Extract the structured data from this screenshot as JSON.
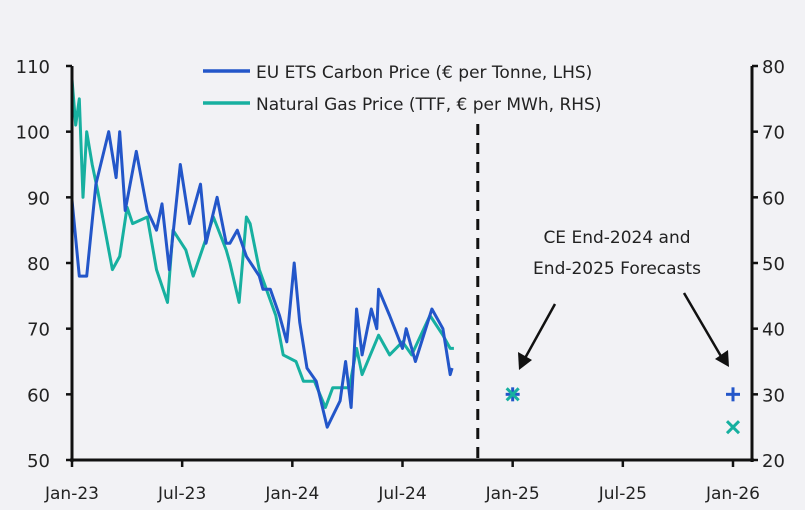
{
  "chart_data": {
    "type": "line",
    "title": "",
    "x_unit": "months since Jan-23",
    "xlim": [
      0,
      36
    ],
    "x_ticks": [
      {
        "x": 0,
        "label": "Jan-23"
      },
      {
        "x": 6,
        "label": "Jul-23"
      },
      {
        "x": 12,
        "label": "Jan-24"
      },
      {
        "x": 18,
        "label": "Jul-24"
      },
      {
        "x": 24,
        "label": "Jan-25"
      },
      {
        "x": 30,
        "label": "Jul-25"
      },
      {
        "x": 36,
        "label": "Jan-26"
      }
    ],
    "y_left": {
      "label": "",
      "lim": [
        50,
        110
      ],
      "ticks": [
        "50",
        "60",
        "70",
        "80",
        "90",
        "100",
        "110"
      ]
    },
    "y_right": {
      "label": "",
      "lim": [
        20,
        80
      ],
      "ticks": [
        "20",
        "30",
        "40",
        "50",
        "60",
        "70",
        "80"
      ]
    },
    "forecast_divider_x": 22.1,
    "legend": {
      "placement": "top-center"
    },
    "annotation": {
      "lines": [
        "CE End-2024 and",
        "End-2025 Forecasts"
      ]
    },
    "series": [
      {
        "name": "EU ETS Carbon Price (€ per Tonne, LHS)",
        "axis": "left",
        "color": "#2356c9",
        "x": [
          0,
          0.4,
          0.8,
          1.3,
          2.0,
          2.4,
          2.6,
          2.9,
          3.5,
          4.1,
          4.6,
          4.9,
          5.3,
          5.9,
          6.4,
          7.0,
          7.3,
          7.9,
          8.4,
          8.6,
          9.0,
          9.5,
          10.2,
          10.4,
          10.8,
          11.3,
          11.7,
          12.1,
          12.4,
          12.8,
          13.3,
          13.9,
          14.6,
          14.9,
          15.2,
          15.5,
          15.8,
          16.3,
          16.6,
          16.7,
          17.3,
          18.0,
          18.2,
          18.7,
          19.6,
          20.2,
          20.6,
          20.7
        ],
        "y": [
          89.6,
          78,
          78,
          92,
          100,
          93,
          100,
          88,
          97,
          88,
          85,
          89,
          79,
          95,
          86,
          92,
          83,
          90,
          83,
          83,
          85,
          81,
          78,
          76,
          76,
          72,
          68,
          80,
          71,
          64,
          62,
          55,
          59,
          65,
          58,
          73,
          66,
          73,
          70,
          76,
          72,
          67,
          70,
          65,
          73,
          70,
          63,
          64
        ]
      },
      {
        "name": "Natural Gas Price (TTF, € per MWh, RHS)",
        "axis": "right",
        "color": "#17b0a0",
        "x": [
          0,
          0.2,
          0.4,
          0.6,
          0.8,
          1.1,
          1.4,
          2.2,
          2.6,
          3.0,
          3.3,
          4.1,
          4.6,
          5.2,
          5.5,
          6.2,
          6.6,
          7.7,
          8.4,
          8.6,
          9.1,
          9.5,
          9.7,
          10.2,
          11.1,
          11.5,
          12.2,
          12.6,
          13.2,
          13.8,
          14.2,
          15.1,
          15.5,
          15.8,
          16.7,
          17.3,
          18.0,
          18.5,
          19.5,
          20.2,
          20.6,
          20.8
        ],
        "y": [
          78,
          71,
          75,
          60,
          70,
          65,
          61,
          49,
          51,
          58.5,
          56,
          57,
          49,
          44,
          55,
          52,
          48,
          57,
          52,
          50,
          44,
          57,
          56,
          49,
          42,
          36,
          35,
          32,
          32,
          28,
          31,
          31,
          37,
          33,
          39,
          36,
          38,
          36,
          42,
          39,
          37,
          37
        ]
      }
    ],
    "forecasts": [
      {
        "series": "EU ETS Carbon Price (€ per Tonne, LHS)",
        "x": 24,
        "y": 60,
        "marker": "plus"
      },
      {
        "series": "Natural Gas Price (TTF, € per MWh, RHS)",
        "x": 24,
        "y": 30,
        "marker": "x"
      },
      {
        "series": "EU ETS Carbon Price (€ per Tonne, LHS)",
        "x": 36,
        "y": 60,
        "marker": "plus"
      },
      {
        "series": "Natural Gas Price (TTF, € per MWh, RHS)",
        "x": 36,
        "y": 25,
        "marker": "x"
      }
    ]
  }
}
